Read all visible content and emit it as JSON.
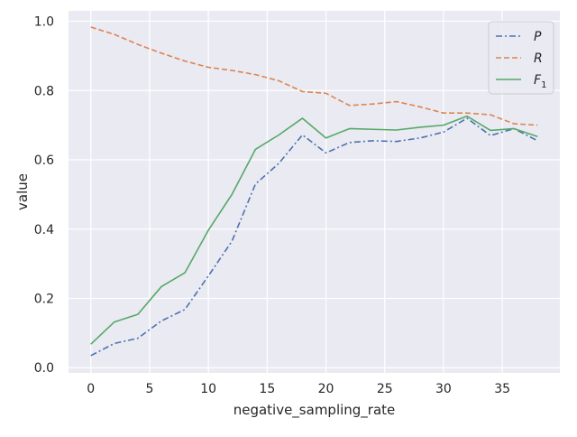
{
  "chart_data": {
    "type": "line",
    "title": "",
    "xlabel": "negative_sampling_rate",
    "ylabel": "value",
    "xlim": [
      -1.9,
      39.9
    ],
    "ylim": [
      -0.015,
      1.03
    ],
    "x_ticks": [
      0,
      5,
      10,
      15,
      20,
      25,
      30,
      35
    ],
    "y_ticks": [
      0.0,
      0.2,
      0.4,
      0.6,
      0.8,
      1.0
    ],
    "x_tick_labels": [
      "0",
      "5",
      "10",
      "15",
      "20",
      "25",
      "30",
      "35"
    ],
    "y_tick_labels": [
      "0.0",
      "0.2",
      "0.4",
      "0.6",
      "0.8",
      "1.0"
    ],
    "grid": true,
    "legend_position": "top-right",
    "x": [
      0,
      2,
      4,
      6,
      8,
      10,
      12,
      14,
      16,
      18,
      20,
      22,
      24,
      26,
      28,
      30,
      32,
      34,
      36,
      38
    ],
    "series": [
      {
        "name": "P",
        "legend_main": "P",
        "legend_sub": "",
        "color": "#4c72b0",
        "dash": "dashdot",
        "values": [
          0.035,
          0.07,
          0.085,
          0.135,
          0.168,
          0.265,
          0.365,
          0.53,
          0.59,
          0.672,
          0.62,
          0.65,
          0.655,
          0.653,
          0.663,
          0.68,
          0.72,
          0.67,
          0.69,
          0.655
        ]
      },
      {
        "name": "R",
        "legend_main": "R",
        "legend_sub": "",
        "color": "#dd8452",
        "dash": "dashed",
        "values": [
          0.983,
          0.962,
          0.933,
          0.908,
          0.885,
          0.867,
          0.858,
          0.846,
          0.828,
          0.797,
          0.792,
          0.757,
          0.761,
          0.768,
          0.753,
          0.735,
          0.735,
          0.73,
          0.704,
          0.7
        ]
      },
      {
        "name": "F1",
        "legend_main": "F",
        "legend_sub": "1",
        "color": "#55a868",
        "dash": "solid",
        "values": [
          0.068,
          0.132,
          0.154,
          0.234,
          0.274,
          0.397,
          0.5,
          0.63,
          0.672,
          0.72,
          0.663,
          0.69,
          0.688,
          0.686,
          0.694,
          0.7,
          0.726,
          0.685,
          0.69,
          0.667
        ]
      }
    ]
  }
}
